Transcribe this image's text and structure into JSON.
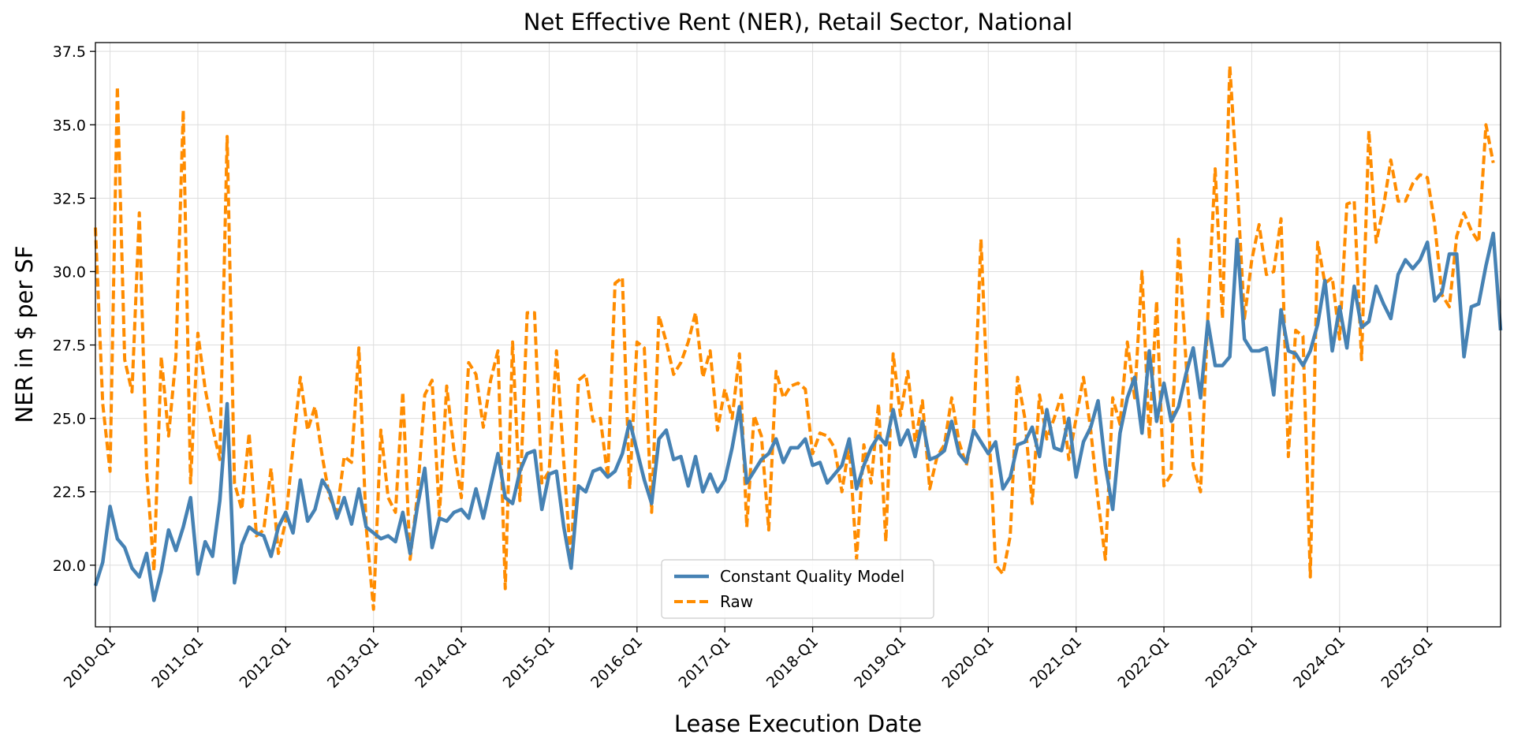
{
  "chart_data": {
    "type": "line",
    "title": "Net Effective Rent (NER), Retail Sector, National",
    "xlabel": "Lease Execution Date",
    "ylabel": "NER in $ per SF",
    "x_start": "2009-11",
    "x_frequency": "monthly",
    "x_ticks": [
      "2010-Q1",
      "2011-Q1",
      "2012-Q1",
      "2013-Q1",
      "2014-Q1",
      "2015-Q1",
      "2016-Q1",
      "2017-Q1",
      "2018-Q1",
      "2019-Q1",
      "2020-Q1",
      "2021-Q1",
      "2022-Q1",
      "2023-Q1",
      "2024-Q1",
      "2025-Q1"
    ],
    "y_ticks": [
      20.0,
      22.5,
      25.0,
      27.5,
      30.0,
      32.5,
      35.0,
      37.5
    ],
    "ylim": [
      17.9,
      37.8
    ],
    "grid": true,
    "legend_position": "bottom-center",
    "series": [
      {
        "name": "Constant Quality Model",
        "color": "#4682b4",
        "style": "solid",
        "values": [
          19.3,
          20.1,
          22.0,
          20.9,
          20.6,
          19.9,
          19.6,
          20.4,
          18.8,
          19.8,
          21.2,
          20.5,
          21.3,
          22.3,
          19.7,
          20.8,
          20.3,
          22.2,
          25.5,
          19.4,
          20.7,
          21.3,
          21.1,
          21.0,
          20.3,
          21.3,
          21.8,
          21.1,
          22.9,
          21.5,
          21.9,
          22.9,
          22.5,
          21.6,
          22.3,
          21.4,
          22.6,
          21.3,
          21.1,
          20.9,
          21.0,
          20.8,
          21.8,
          20.4,
          22.0,
          23.3,
          20.6,
          21.6,
          21.5,
          21.8,
          21.9,
          21.6,
          22.6,
          21.6,
          22.7,
          23.8,
          22.3,
          22.1,
          23.2,
          23.8,
          23.9,
          21.9,
          23.1,
          23.2,
          21.3,
          19.9,
          22.7,
          22.5,
          23.2,
          23.3,
          23.0,
          23.2,
          23.8,
          24.9,
          23.9,
          22.9,
          22.1,
          24.3,
          24.6,
          23.6,
          23.7,
          22.7,
          23.7,
          22.5,
          23.1,
          22.5,
          22.9,
          24.0,
          25.4,
          22.8,
          23.2,
          23.6,
          23.8,
          24.3,
          23.5,
          24.0,
          24.0,
          24.3,
          23.4,
          23.5,
          22.8,
          23.1,
          23.4,
          24.3,
          22.6,
          23.4,
          24.0,
          24.4,
          24.1,
          25.3,
          24.1,
          24.6,
          23.7,
          24.9,
          23.6,
          23.7,
          23.9,
          24.9,
          23.8,
          23.5,
          24.6,
          24.2,
          23.8,
          24.2,
          22.6,
          23.0,
          24.1,
          24.2,
          24.7,
          23.7,
          25.3,
          24.0,
          23.9,
          25.0,
          23.0,
          24.2,
          24.7,
          25.6,
          23.4,
          21.9,
          24.5,
          25.7,
          26.4,
          24.5,
          27.3,
          24.9,
          26.2,
          24.9,
          25.4,
          26.5,
          27.4,
          25.7,
          28.3,
          26.8,
          26.8,
          27.1,
          31.1,
          27.7,
          27.3,
          27.3,
          27.4,
          25.8,
          28.7,
          27.3,
          27.2,
          26.8,
          27.3,
          28.2,
          29.7,
          27.3,
          28.8,
          27.4,
          29.5,
          28.1,
          28.3,
          29.5,
          28.9,
          28.4,
          29.9,
          30.4,
          30.1,
          30.4,
          31.0,
          29.0,
          29.3,
          30.6,
          30.6,
          27.1,
          28.8,
          28.9,
          30.2,
          31.3,
          28.0
        ]
      },
      {
        "name": "Raw",
        "color": "#ff8c00",
        "style": "dashed",
        "values": [
          31.5,
          25.5,
          23.2,
          36.3,
          27.0,
          25.9,
          32.0,
          23.2,
          19.8,
          27.1,
          24.4,
          27.1,
          35.5,
          22.8,
          27.9,
          26.0,
          24.7,
          23.6,
          34.6,
          22.8,
          21.9,
          24.5,
          21.0,
          21.2,
          23.3,
          20.4,
          21.5,
          24.0,
          26.4,
          24.6,
          25.4,
          23.7,
          22.3,
          21.8,
          23.7,
          23.5,
          27.4,
          21.3,
          18.5,
          24.6,
          22.3,
          21.8,
          25.9,
          20.2,
          22.4,
          25.8,
          26.3,
          21.7,
          26.1,
          23.9,
          22.3,
          26.9,
          26.5,
          24.7,
          26.3,
          27.3,
          19.2,
          27.6,
          22.2,
          28.6,
          28.6,
          22.8,
          23.2,
          27.3,
          23.5,
          20.0,
          26.3,
          26.5,
          24.9,
          25.0,
          23.0,
          29.6,
          29.8,
          22.6,
          27.6,
          27.4,
          21.8,
          28.5,
          27.6,
          26.5,
          26.9,
          27.6,
          28.6,
          26.4,
          27.3,
          24.6,
          26.0,
          25.0,
          27.2,
          21.3,
          25.1,
          24.4,
          21.2,
          26.6,
          25.7,
          26.1,
          26.2,
          26.0,
          23.8,
          24.5,
          24.4,
          24.0,
          22.5,
          24.1,
          20.2,
          24.1,
          22.8,
          25.5,
          20.8,
          27.2,
          25.1,
          26.6,
          24.2,
          25.6,
          22.6,
          23.7,
          24.1,
          25.7,
          24.2,
          23.4,
          24.6,
          31.1,
          25.1,
          20.0,
          19.7,
          21.0,
          26.4,
          25.0,
          22.1,
          25.8,
          24.3,
          25.0,
          25.8,
          23.6,
          25.0,
          26.4,
          24.6,
          22.2,
          20.2,
          25.7,
          24.8,
          27.6,
          25.7,
          30.0,
          24.3,
          29.0,
          22.7,
          23.1,
          31.1,
          27.0,
          23.4,
          22.5,
          28.5,
          33.5,
          28.4,
          37.0,
          33.0,
          28.4,
          30.4,
          31.6,
          29.9,
          30.0,
          31.8,
          23.7,
          28.0,
          27.8,
          19.6,
          31.0,
          29.6,
          29.8,
          27.7,
          32.3,
          32.4,
          27.0,
          34.8,
          31.0,
          32.2,
          33.8,
          32.4,
          32.4,
          33.0,
          33.3,
          33.2,
          31.6,
          29.2,
          28.8,
          31.2,
          32.0,
          31.4,
          31.0,
          35.0,
          33.7
        ]
      }
    ]
  }
}
